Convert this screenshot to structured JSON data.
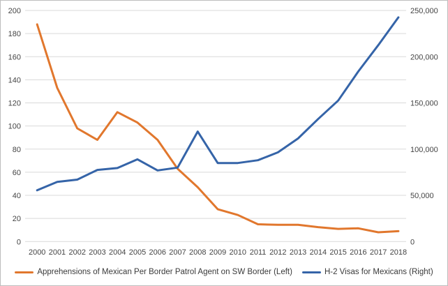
{
  "chart_data": {
    "type": "line",
    "title": "",
    "categories": [
      "2000",
      "2001",
      "2002",
      "2003",
      "2004",
      "2005",
      "2006",
      "2007",
      "2008",
      "2009",
      "2010",
      "2011",
      "2012",
      "2013",
      "2014",
      "2015",
      "2016",
      "2017",
      "2018"
    ],
    "series": [
      {
        "name": "Apprehensions of Mexican Per Border Patrol Agent on SW Border (Left)",
        "axis": "left",
        "color": "#e1772d",
        "values": [
          188,
          133,
          98,
          88,
          112,
          103,
          88,
          63,
          47,
          28,
          23,
          15,
          14.5,
          14.5,
          12.5,
          11,
          11.5,
          8,
          9
        ]
      },
      {
        "name": "H-2 Visas for Mexicans (Right)",
        "axis": "right",
        "color": "#3564a8",
        "values": [
          55500,
          64500,
          67000,
          77500,
          79500,
          89000,
          77000,
          80000,
          119000,
          85000,
          85000,
          88000,
          96500,
          111500,
          132500,
          152500,
          184000,
          212500,
          242500
        ]
      }
    ],
    "left_axis": {
      "min": 0,
      "max": 200,
      "step": 20,
      "tick_labels": [
        "0",
        "20",
        "40",
        "60",
        "80",
        "100",
        "120",
        "140",
        "160",
        "180",
        "200"
      ]
    },
    "right_axis": {
      "min": 0,
      "max": 250000,
      "step": 50000,
      "tick_labels": [
        "0",
        "50,000",
        "100,000",
        "150,000",
        "200,000",
        "250,000"
      ]
    },
    "grid": "horizontal",
    "legend_position": "bottom",
    "colors": {
      "gridline": "#d9d9d9",
      "axis_text": "#444444",
      "border": "#bdbdbd",
      "background": "#ffffff"
    }
  }
}
